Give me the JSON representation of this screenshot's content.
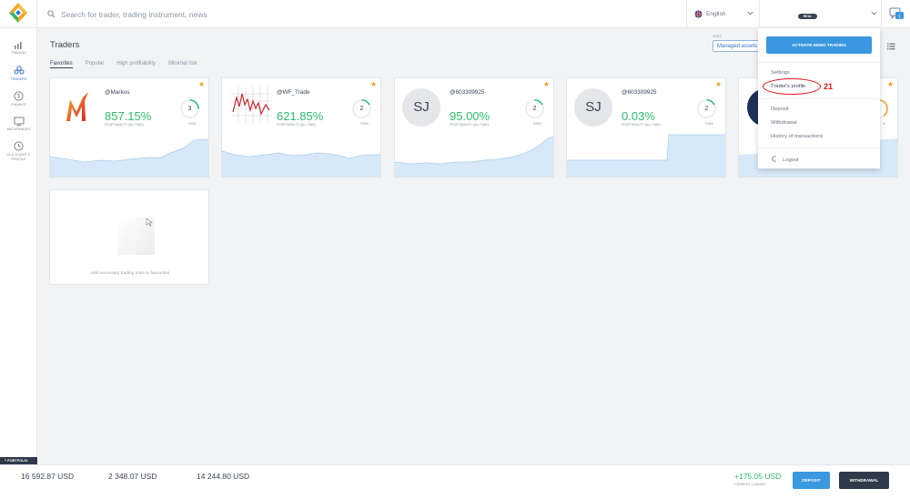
{
  "header": {
    "search_placeholder": "Search for trader, trading instrument, news",
    "language": "English",
    "account_badge": "REAL",
    "chat_count": "1"
  },
  "sidebar": {
    "items": [
      {
        "label": "TRADING",
        "icon": "chart-icon"
      },
      {
        "label": "TRADERS",
        "icon": "users-icon",
        "active": true
      },
      {
        "label": "FINANCE",
        "icon": "dollar-icon"
      },
      {
        "label": "METATRADER",
        "icon": "monitor-icon"
      },
      {
        "label": "OLD CLIENT'S PROFILE",
        "icon": "clock-icon"
      }
    ],
    "portfolio_tab": "PORTFOLIO"
  },
  "main": {
    "title": "Traders",
    "tabs": [
      "Favorites",
      "Popular",
      "High profitability",
      "Minimal risk"
    ],
    "sort_label": "SORT",
    "sort_value": "Managed assets"
  },
  "cards": [
    {
      "name": "@Markus",
      "profit": "857.15%",
      "profit_label": "PROFITABILITY (ALL TIME)",
      "risk": "3",
      "risk_label": "RISK",
      "risk_fraction": 0.25,
      "avatar": "M"
    },
    {
      "name": "@WF_Trade",
      "profit": "621.85%",
      "profit_label": "PROFITABILITY (ALL TIME)",
      "risk": "2",
      "risk_label": "RISK",
      "risk_fraction": 0.17,
      "avatar": "chart"
    },
    {
      "name": "@603309925",
      "profit": "95.00%",
      "profit_label": "PROFITABILITY (ALL TIME)",
      "risk": "2",
      "risk_label": "RISK",
      "risk_fraction": 0.17,
      "avatar": "SJ"
    },
    {
      "name": "@603309925",
      "profit": "0.03%",
      "profit_label": "PROFITABILITY (ALL TIME)",
      "risk": "2",
      "risk_label": "RISK",
      "risk_fraction": 0.17,
      "avatar": "SJ"
    },
    {
      "name": "",
      "profit": "",
      "profit_label": "",
      "risk": "",
      "risk_label": "K",
      "risk_fraction": 0.4,
      "avatar": "dark"
    }
  ],
  "empty_card": {
    "text": "Add necessary trading tools to favourites"
  },
  "dropdown": {
    "demo_button": "ACTIVATE DEMO TRADING",
    "items": [
      "Settings",
      "Trader's profile",
      "Deposit",
      "Withdrawal",
      "History of transactions",
      "Logout"
    ],
    "annotation": "21"
  },
  "footer": {
    "value1": "16 592.87 USD",
    "value2": "2 348.07 USD",
    "value3": "14 244.80 USD",
    "change": "+175.05 USD",
    "change_label": "CURRENT CHANGE",
    "deposit_label": "DEPOSIT",
    "withdrawal_label": "WITHDRAWAL"
  },
  "colors": {
    "accent": "#3a97e0",
    "profit": "#2bbf6a",
    "dark": "#2e3a4a",
    "annotation": "#e0141d",
    "star": "#f0a030"
  }
}
